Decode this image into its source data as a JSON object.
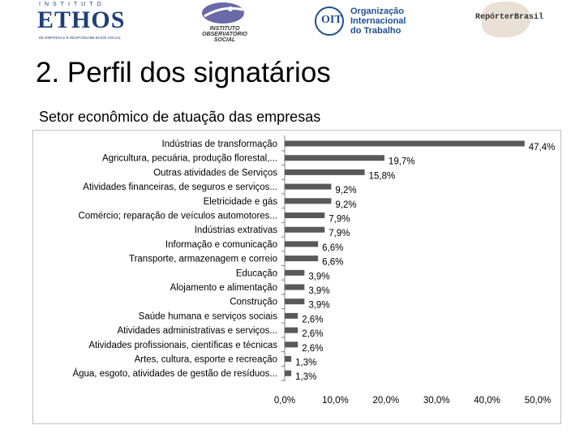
{
  "header": {
    "logos": {
      "ethos": {
        "top": "INSTITUTO",
        "word": "ETHOS",
        "sub": "DE EMPRESAS E RESPONSABILIDADE SOCIAL"
      },
      "observatorio": {
        "line1": "INSTITUTO",
        "line2": "OBSERVATÓRIO",
        "line3": "SOCIAL"
      },
      "oit": {
        "mark": "OIT",
        "name": "Organização\nInternacional\ndo Trabalho"
      },
      "reporter": {
        "text": "RepórterBrasil"
      }
    }
  },
  "slide": {
    "title": "2. Perfil dos signatários",
    "subtitle": "Setor econômico de atuação das empresas"
  },
  "colors": {
    "bar": "#595959",
    "axis": "#808080",
    "frame": "#bfbfbf"
  },
  "chart_data": {
    "type": "bar",
    "orientation": "horizontal",
    "categories": [
      "Indústrias de transformação",
      "Agricultura, pecuária, produção florestal,...",
      "Outras atividades de Serviços",
      "Atividades financeiras, de seguros e serviços...",
      "Eletricidade e gás",
      "Comércio; reparação de veículos automotores...",
      "Indústrias extrativas",
      "Informação e comunicação",
      "Transporte, armazenagem e correio",
      "Educação",
      "Alojamento e alimentação",
      "Construção",
      "Saúde humana e serviços sociais",
      "Atividades administrativas e serviços...",
      "Atividades profissionais, científicas e técnicas",
      "Artes, cultura, esporte e recreação",
      "Água, esgoto, atividades de gestão de resíduos..."
    ],
    "values": [
      47.4,
      19.7,
      15.8,
      9.2,
      9.2,
      7.9,
      7.9,
      6.6,
      6.6,
      3.9,
      3.9,
      3.9,
      2.6,
      2.6,
      2.6,
      1.3,
      1.3
    ],
    "value_labels": [
      "47,4%",
      "19,7%",
      "15,8%",
      "9,2%",
      "9,2%",
      "7,9%",
      "7,9%",
      "6,6%",
      "6,6%",
      "3,9%",
      "3,9%",
      "3,9%",
      "2,6%",
      "2,6%",
      "2,6%",
      "1,3%",
      "1,3%"
    ],
    "xlim": [
      0,
      50
    ],
    "xticks": [
      0,
      10,
      20,
      30,
      40,
      50
    ],
    "xtick_labels": [
      "0,0%",
      "10,0%",
      "20,0%",
      "30,0%",
      "40,0%",
      "50,0%"
    ],
    "title": "",
    "xlabel": "",
    "ylabel": "",
    "grid": false,
    "legend": "none"
  }
}
